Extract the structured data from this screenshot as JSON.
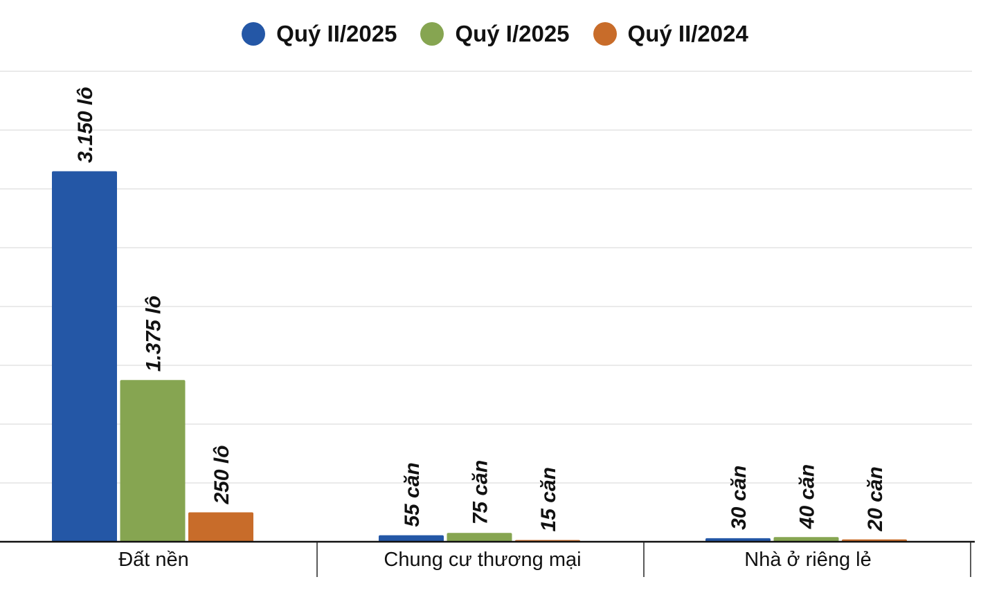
{
  "chart_data": {
    "type": "bar",
    "categories": [
      "Đất nền",
      "Chung cư thương mại",
      "Nhà ở riêng lẻ"
    ],
    "series": [
      {
        "name": "Quý II/2025",
        "color": "#2457a6",
        "values": [
          3150,
          55,
          30
        ],
        "labels": [
          "3.150 lô",
          "55 căn",
          "30 căn"
        ]
      },
      {
        "name": "Quý I/2025",
        "color": "#86a551",
        "values": [
          1375,
          75,
          40
        ],
        "labels": [
          "1.375 lô",
          "75 căn",
          "40 căn"
        ]
      },
      {
        "name": "Quý II/2024",
        "color": "#c86c2a",
        "values": [
          250,
          15,
          20
        ],
        "labels": [
          "250 lô",
          "15 căn",
          "20 căn"
        ]
      }
    ],
    "ylim": [
      0,
      4000
    ],
    "grid": true,
    "legend_position": "top-center",
    "y_tick_labels_visible": false
  }
}
